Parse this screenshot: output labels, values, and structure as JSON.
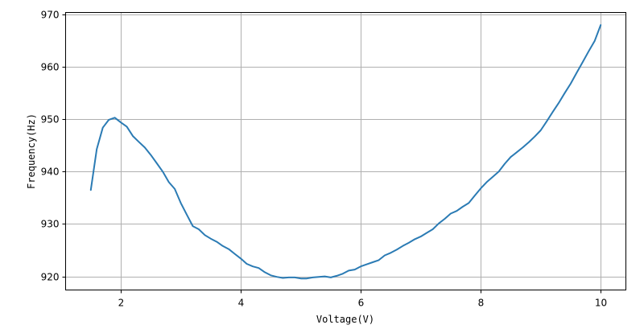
{
  "chart_data": {
    "type": "line",
    "title": "",
    "xlabel": "Voltage(V)",
    "ylabel": "Frequency(Hz)",
    "xlim": [
      1.08,
      10.42
    ],
    "ylim": [
      917.4,
      970.4
    ],
    "xticks": [
      2,
      4,
      6,
      8,
      10
    ],
    "yticks": [
      920,
      930,
      940,
      950,
      960,
      970
    ],
    "grid": true,
    "line_color": "#2b7bb4",
    "series": [
      {
        "x": [
          1.5,
          1.6,
          1.7,
          1.8,
          1.9,
          2.0,
          2.1,
          2.2,
          2.3,
          2.4,
          2.5,
          2.6,
          2.7,
          2.8,
          2.9,
          3.0,
          3.1,
          3.2,
          3.3,
          3.4,
          3.5,
          3.6,
          3.7,
          3.8,
          3.9,
          4.0,
          4.1,
          4.2,
          4.3,
          4.4,
          4.5,
          4.6,
          4.7,
          4.8,
          4.9,
          5.0,
          5.1,
          5.2,
          5.3,
          5.4,
          5.5,
          5.6,
          5.7,
          5.8,
          5.9,
          6.0,
          6.1,
          6.2,
          6.3,
          6.4,
          6.5,
          6.6,
          6.7,
          6.8,
          6.9,
          7.0,
          7.1,
          7.2,
          7.3,
          7.4,
          7.5,
          7.6,
          7.7,
          7.8,
          7.9,
          8.0,
          8.1,
          8.2,
          8.3,
          8.4,
          8.5,
          8.6,
          8.7,
          8.8,
          8.9,
          9.0,
          9.1,
          9.2,
          9.3,
          9.4,
          9.5,
          9.6,
          9.7,
          9.8,
          9.9,
          10.0
        ],
        "y": [
          936.5,
          944.3,
          948.4,
          949.9,
          950.3,
          949.4,
          948.6,
          946.8,
          945.7,
          944.6,
          943.2,
          941.6,
          940.0,
          938.0,
          936.7,
          934.0,
          931.8,
          929.6,
          929.0,
          927.9,
          927.2,
          926.6,
          925.8,
          925.2,
          924.3,
          923.4,
          922.4,
          921.9,
          921.6,
          920.8,
          920.2,
          919.9,
          919.7,
          919.8,
          919.8,
          919.6,
          919.6,
          919.8,
          919.9,
          920.0,
          919.8,
          920.1,
          920.5,
          921.1,
          921.3,
          921.9,
          922.3,
          922.7,
          923.1,
          924.0,
          924.5,
          925.1,
          925.8,
          926.4,
          927.1,
          927.6,
          928.3,
          929.0,
          930.1,
          931.0,
          932.0,
          932.5,
          933.3,
          934.0,
          935.4,
          936.8,
          938.0,
          939.0,
          940.0,
          941.5,
          942.8,
          943.7,
          944.6,
          945.6,
          946.7,
          947.9,
          949.6,
          951.4,
          953.1,
          955.0,
          956.8,
          958.9,
          960.9,
          963.0,
          965.0,
          968.0
        ]
      }
    ]
  }
}
